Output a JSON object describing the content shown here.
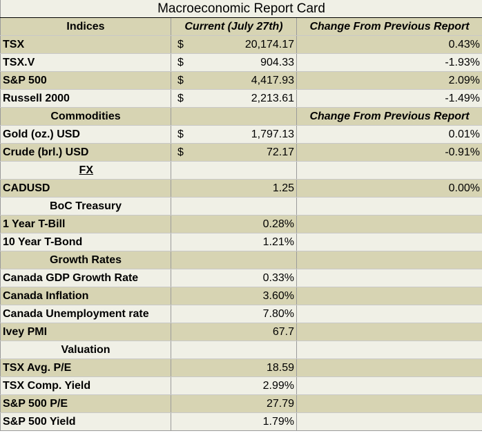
{
  "title": "Macroeconomic Report Card",
  "indices": {
    "header": "Indices",
    "current_header": "Current (July 27th)",
    "change_header": "Change From Previous Report",
    "rows": [
      {
        "name": "TSX",
        "currency": "$",
        "value": "20,174.17",
        "change": "0.43%"
      },
      {
        "name": "TSX.V",
        "currency": "$",
        "value": "904.33",
        "change": "-1.93%"
      },
      {
        "name": "S&P 500",
        "currency": "$",
        "value": "4,417.93",
        "change": "2.09%"
      },
      {
        "name": "Russell 2000",
        "currency": "$",
        "value": "2,213.61",
        "change": "-1.49%"
      }
    ]
  },
  "commodities": {
    "header": "Commodities",
    "change_header": "Change From Previous Report",
    "rows": [
      {
        "name": "Gold (oz.) USD",
        "currency": "$",
        "value": "1,797.13",
        "change": "0.01%"
      },
      {
        "name": "Crude (brl.) USD",
        "currency": "$",
        "value": "72.17",
        "change": "-0.91%"
      }
    ]
  },
  "fx": {
    "header": "FX",
    "rows": [
      {
        "name": "CADUSD",
        "value": "1.25",
        "change": "0.00%"
      }
    ]
  },
  "boc": {
    "header": "BoC Treasury",
    "rows": [
      {
        "name": "1 Year T-Bill",
        "value": "0.28%"
      },
      {
        "name": "10 Year T-Bond",
        "value": "1.21%"
      }
    ]
  },
  "growth": {
    "header": "Growth Rates",
    "rows": [
      {
        "name": "Canada GDP Growth Rate",
        "value": "0.33%"
      },
      {
        "name": "Canada Inflation",
        "value": "3.60%"
      },
      {
        "name": "Canada Unemployment rate",
        "value": "7.80%"
      },
      {
        "name": "Ivey PMI",
        "value": "67.7"
      }
    ]
  },
  "valuation": {
    "header": "Valuation",
    "rows": [
      {
        "name": "TSX Avg. P/E",
        "value": "18.59"
      },
      {
        "name": "TSX Comp. Yield",
        "value": "2.99%"
      },
      {
        "name": "S&P 500 P/E",
        "value": "27.79"
      },
      {
        "name": "S&P 500 Yield",
        "value": "1.79%"
      }
    ]
  },
  "colors": {
    "tan": "#d7d4b3",
    "light": "#f0f0e6"
  }
}
